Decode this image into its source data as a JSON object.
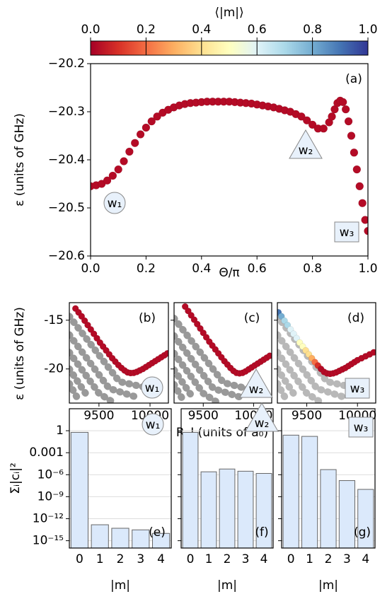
{
  "colorbar": {
    "label": "⟨|m|⟩",
    "lim": [
      0,
      1
    ],
    "ticks": [
      {
        "value": 0,
        "label": "0.0"
      },
      0.2,
      0.4,
      0.6,
      0.8,
      {
        "value": 1,
        "label": "1.0"
      }
    ],
    "colors": [
      "#a50026",
      "#d73027",
      "#f46d43",
      "#fdae61",
      "#fee090",
      "#ffffbf",
      "#e0f3f8",
      "#abd9e9",
      "#74add1",
      "#4575b4",
      "#313695"
    ]
  },
  "chart_data": [
    {
      "type": "scatter",
      "panel_label": "(a)",
      "xlabel": "Θ/π",
      "ylabel": "ε (units of GHz)",
      "xlim": [
        0,
        1
      ],
      "xticks": [
        {
          "value": 0,
          "label": "0.0"
        },
        0.2,
        0.4,
        0.6,
        0.8,
        {
          "value": 1,
          "label": "1.0"
        }
      ],
      "ylim": [
        -20.6,
        -20.2
      ],
      "yticks": [
        {
          "value": -20.2,
          "label": "−20.2"
        },
        {
          "value": -20.3,
          "label": "−20.3"
        },
        {
          "value": -20.4,
          "label": "−20.4"
        },
        {
          "value": -20.5,
          "label": "−20.5"
        },
        {
          "value": -20.6,
          "label": "−20.6"
        }
      ],
      "annotations": [
        {
          "text": "w₁",
          "shape": "circle"
        },
        {
          "text": "w₂",
          "shape": "triangle"
        },
        {
          "text": "w₃",
          "shape": "square"
        }
      ],
      "series": [
        {
          "color": "#b40b26",
          "x": [
            0,
            0.02,
            0.04,
            0.06,
            0.08,
            0.1,
            0.12,
            0.14,
            0.16,
            0.18,
            0.2,
            0.22,
            0.24,
            0.26,
            0.28,
            0.3,
            0.32,
            0.34,
            0.36,
            0.38,
            0.4,
            0.42,
            0.44,
            0.46,
            0.48,
            0.5,
            0.52,
            0.54,
            0.56,
            0.58,
            0.6,
            0.62,
            0.64,
            0.66,
            0.68,
            0.7,
            0.72,
            0.74,
            0.76,
            0.78,
            0.8,
            0.82,
            0.84,
            0.86,
            0.87,
            0.88,
            0.89,
            0.9,
            0.91,
            0.92,
            0.93,
            0.94,
            0.95,
            0.96,
            0.97,
            0.98,
            0.99,
            1.0
          ],
          "values": [
            -20.455,
            -20.453,
            -20.45,
            -20.443,
            -20.433,
            -20.42,
            -20.403,
            -20.383,
            -20.365,
            -20.347,
            -20.333,
            -20.32,
            -20.31,
            -20.302,
            -20.296,
            -20.291,
            -20.287,
            -20.284,
            -20.282,
            -20.281,
            -20.28,
            -20.279,
            -20.279,
            -20.279,
            -20.279,
            -20.279,
            -20.28,
            -20.281,
            -20.282,
            -20.283,
            -20.285,
            -20.287,
            -20.289,
            -20.291,
            -20.294,
            -20.297,
            -20.3,
            -20.305,
            -20.31,
            -20.318,
            -20.327,
            -20.335,
            -20.335,
            -20.322,
            -20.31,
            -20.295,
            -20.282,
            -20.277,
            -20.28,
            -20.295,
            -20.32,
            -20.35,
            -20.385,
            -20.42,
            -20.455,
            -20.49,
            -20.525,
            -20.548
          ]
        }
      ]
    },
    {
      "type": "scatter",
      "panel_label": "(b)",
      "ylabel": "ε (units of GHz)",
      "xlim": [
        9210,
        10180
      ],
      "xticks": [
        9500,
        10000
      ],
      "ylim": [
        -23.5,
        -13.2
      ],
      "yticks": [
        -15,
        -20
      ],
      "annotations": [
        {
          "text": "w₁",
          "shape": "circle"
        }
      ],
      "series": [
        {
          "style": "line",
          "color": "rgba(0,0,0,0.4)",
          "x": [
            9210,
            9700,
            10000
          ],
          "values": [
            -14.6,
            -21.3,
            -22
          ]
        },
        {
          "style": "line",
          "color": "rgba(0,0,0,0.4)",
          "x": [
            9210,
            9600,
            9900
          ],
          "values": [
            -16.5,
            -22,
            -23
          ]
        },
        {
          "style": "line",
          "color": "rgba(0,0,0,0.4)",
          "x": [
            9210,
            9500,
            9650
          ],
          "values": [
            -18.3,
            -22.5,
            -23.5
          ]
        },
        {
          "style": "line",
          "color": "rgba(0,0,0,0.4)",
          "x": [
            9210,
            9400
          ],
          "values": [
            -20,
            -23
          ]
        },
        {
          "style": "line",
          "color": "rgba(0,0,0,0.4)",
          "x": [
            9210,
            9300
          ],
          "values": [
            -21.5,
            -23.2
          ]
        },
        {
          "color": "#b40b26",
          "x": [
            9270,
            9300,
            9330,
            9360,
            9390,
            9420,
            9450,
            9480,
            9510,
            9540,
            9570,
            9600,
            9630,
            9660,
            9690,
            9720,
            9750,
            9780,
            9810,
            9840,
            9870,
            9900,
            9930,
            9960,
            9990,
            10020,
            10050,
            10080,
            10110,
            10140,
            10170
          ],
          "values": [
            -13.8,
            -14.2,
            -14.6,
            -15.05,
            -15.5,
            -15.95,
            -16.4,
            -16.85,
            -17.3,
            -17.7,
            -18.1,
            -18.5,
            -18.9,
            -19.25,
            -19.6,
            -19.9,
            -20.15,
            -20.35,
            -20.42,
            -20.4,
            -20.3,
            -20.15,
            -20,
            -19.8,
            -19.6,
            -19.4,
            -19.2,
            -19,
            -18.8,
            -18.6,
            -18.4
          ]
        }
      ]
    },
    {
      "type": "scatter",
      "panel_label": "(c)",
      "xlabel": "R_I (units of a₀)",
      "xlim": [
        9210,
        10180
      ],
      "xticks": [
        9500,
        10000
      ],
      "ylim": [
        -23.5,
        -13.2
      ],
      "yticks": [
        -15,
        -20
      ],
      "annotations": [
        {
          "text": "w₂",
          "shape": "triangle"
        }
      ],
      "series": [
        {
          "style": "line",
          "color": "rgba(0,0,0,0.4)",
          "x": [
            9210,
            9700,
            10000
          ],
          "values": [
            -14.8,
            -21.4,
            -22.2
          ]
        },
        {
          "style": "line",
          "color": "rgba(0,0,0,0.4)",
          "x": [
            9210,
            9600,
            9900
          ],
          "values": [
            -16.6,
            -22,
            -23
          ]
        },
        {
          "style": "line",
          "color": "rgba(0,0,0,0.4)",
          "x": [
            9210,
            9500,
            9650
          ],
          "values": [
            -18.4,
            -22.5,
            -23.5
          ]
        },
        {
          "style": "line",
          "color": "rgba(0,0,0,0.4)",
          "x": [
            9210,
            9400
          ],
          "values": [
            -20.1,
            -23
          ]
        },
        {
          "style": "line",
          "color": "rgba(0,0,0,0.4)",
          "x": [
            9210,
            9300
          ],
          "values": [
            -21.6,
            -23.2
          ]
        },
        {
          "color": "#b40b26",
          "x": [
            9320,
            9350,
            9380,
            9410,
            9440,
            9470,
            9500,
            9530,
            9560,
            9590,
            9620,
            9650,
            9680,
            9710,
            9740,
            9770,
            9800,
            9830,
            9860,
            9890,
            9920,
            9950,
            9980,
            10010,
            10040,
            10070,
            10100,
            10130,
            10160
          ],
          "values": [
            -13.6,
            -14.05,
            -14.5,
            -14.95,
            -15.4,
            -15.85,
            -16.3,
            -16.75,
            -17.2,
            -17.6,
            -18,
            -18.4,
            -18.8,
            -19.2,
            -19.55,
            -19.9,
            -20.2,
            -20.4,
            -20.45,
            -20.4,
            -20.25,
            -20.05,
            -19.85,
            -19.65,
            -19.45,
            -19.25,
            -19.05,
            -18.85,
            -18.65
          ]
        }
      ]
    },
    {
      "type": "scatter",
      "panel_label": "(d)",
      "xlim": [
        9210,
        10180
      ],
      "xticks": [
        9500,
        10000
      ],
      "ylim": [
        -23.5,
        -13.2
      ],
      "yticks": [
        -15,
        -20
      ],
      "annotations": [
        {
          "text": "w₃",
          "shape": "square"
        }
      ],
      "series": [
        {
          "style": "line",
          "color": "rgba(0,0,0,0.28)",
          "x": [
            9210,
            9700,
            10000
          ],
          "values": [
            -14.6,
            -21.3,
            -22
          ]
        },
        {
          "style": "line",
          "color": "rgba(0,0,0,0.28)",
          "x": [
            9210,
            9600,
            9900
          ],
          "values": [
            -16.5,
            -22,
            -23
          ]
        },
        {
          "style": "line",
          "color": "rgba(0,0,0,0.28)",
          "x": [
            9210,
            9500,
            9650
          ],
          "values": [
            -18.3,
            -22.5,
            -23.5
          ]
        },
        {
          "style": "line",
          "color": "rgba(0,0,0,0.28)",
          "x": [
            9210,
            9400
          ],
          "values": [
            -20,
            -23
          ]
        },
        {
          "style": "line",
          "color": "rgba(0,0,0,0.28)",
          "x": [
            9210,
            9300
          ],
          "values": [
            -21.5,
            -23.2
          ]
        },
        {
          "colors": [
            "#4575b4",
            "#74add1",
            "#abd9e9",
            "#abd9e9",
            "#e0f3f8",
            "#e0f3f8",
            "#e0f3f8",
            "#ffffbf",
            "#ffffbf",
            "#fee090",
            "#fee090",
            "#fdae61",
            "#f46d43",
            "#d73027",
            "#b40b26",
            "#b40b26",
            "#b40b26",
            "#b40b26",
            "#b40b26",
            "#b40b26",
            "#b40b26",
            "#b40b26",
            "#b40b26",
            "#b40b26",
            "#b40b26",
            "#b40b26",
            "#b40b26",
            "#b40b26",
            "#b40b26",
            "#b40b26",
            "#b40b26"
          ],
          "x": [
            9220,
            9250,
            9280,
            9310,
            9340,
            9370,
            9400,
            9430,
            9460,
            9490,
            9520,
            9550,
            9580,
            9610,
            9640,
            9670,
            9700,
            9730,
            9760,
            9790,
            9820,
            9850,
            9880,
            9910,
            9940,
            9970,
            10000,
            10040,
            10080,
            10120,
            10160
          ],
          "values": [
            -14.2,
            -14.6,
            -15.05,
            -15.5,
            -15.95,
            -16.4,
            -16.85,
            -17.3,
            -17.7,
            -18.1,
            -18.5,
            -18.9,
            -19.3,
            -19.65,
            -20,
            -20.3,
            -20.45,
            -20.5,
            -20.45,
            -20.35,
            -20.2,
            -20.05,
            -19.9,
            -19.7,
            -19.5,
            -19.3,
            -19.1,
            -18.9,
            -18.7,
            -18.5,
            -18.3
          ]
        }
      ]
    },
    {
      "type": "bar",
      "log": true,
      "grid": true,
      "panel_label": "(e)",
      "ylabel": "Σᵢ|cᵢ|²",
      "xlabel": "|m|",
      "color": "#dbe9fb",
      "annotations": [
        {
          "text": "w₁",
          "shape": "circle"
        }
      ],
      "categories": [
        "0",
        "1",
        "2",
        "3",
        "4"
      ],
      "values": [
        0.6,
        1.5e-13,
        5e-14,
        3e-14,
        1e-14
      ],
      "ylim": [
        1e-16,
        1000
      ],
      "yticks": [
        1,
        0.001,
        {
          "value": 1e-06,
          "label": "10⁻⁶"
        },
        {
          "value": 1e-09,
          "label": "10⁻⁹"
        },
        {
          "value": 1e-12,
          "label": "10⁻¹²"
        },
        {
          "value": 1e-15,
          "label": "10⁻¹⁵"
        }
      ]
    },
    {
      "type": "bar",
      "log": true,
      "grid": true,
      "panel_label": "(f)",
      "xlabel": "|m|",
      "color": "#dbe9fb",
      "annotations": [
        {
          "text": "w₂",
          "shape": "triangle"
        }
      ],
      "categories": [
        "0",
        "1",
        "2",
        "3",
        "4"
      ],
      "values": [
        0.6,
        2.5e-06,
        6e-06,
        3e-06,
        1.5e-06
      ],
      "ylim": [
        1e-16,
        1000
      ],
      "yticks": [
        1,
        0.001,
        1e-06,
        1e-09,
        1e-12,
        1e-15
      ]
    },
    {
      "type": "bar",
      "log": true,
      "grid": true,
      "panel_label": "(g)",
      "xlabel": "|m|",
      "color": "#dbe9fb",
      "annotations": [
        {
          "text": "w₃",
          "shape": "square"
        }
      ],
      "categories": [
        "0",
        "1",
        "2",
        "3",
        "4"
      ],
      "values": [
        0.25,
        0.17,
        5e-06,
        1.6e-07,
        1e-08
      ],
      "ylim": [
        1e-16,
        1000
      ],
      "yticks": [
        1,
        0.001,
        1e-06,
        1e-09,
        1e-12,
        1e-15
      ]
    }
  ]
}
